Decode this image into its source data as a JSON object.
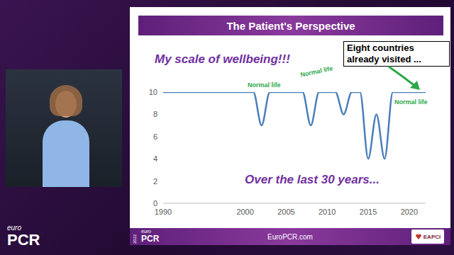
{
  "slide": {
    "title": "The Patient's Perspective",
    "footer": "EuroPCR.com",
    "logos": [
      "euro",
      "PCR",
      "2022",
      "euro",
      "PCR",
      "EAPCI"
    ]
  },
  "chart_data": {
    "type": "line",
    "annotations": [
      "My scale of wellbeing!!!",
      "Normal life",
      "Normal life",
      "Normal life",
      "Eight countries already visited ...",
      "Over the last 30 years..."
    ],
    "x": [
      1990,
      2000,
      2001,
      2002,
      2003,
      2007,
      2008,
      2009,
      2011,
      2012,
      2013,
      2014,
      2015,
      2016,
      2017,
      2018,
      2022
    ],
    "values": [
      10,
      10,
      10,
      7,
      10,
      10,
      7,
      10,
      10,
      8,
      10,
      10,
      4,
      8,
      4,
      10,
      10
    ],
    "color": "#4a7ebb",
    "xlim": [
      1990,
      2022
    ],
    "xticks": [
      1990,
      2000,
      2005,
      2010,
      2015,
      2020
    ],
    "ylim": [
      0,
      10
    ],
    "yticks": [
      0,
      2,
      4,
      6,
      8,
      10
    ],
    "grid": false,
    "line_style": "solid",
    "marker": "none"
  }
}
